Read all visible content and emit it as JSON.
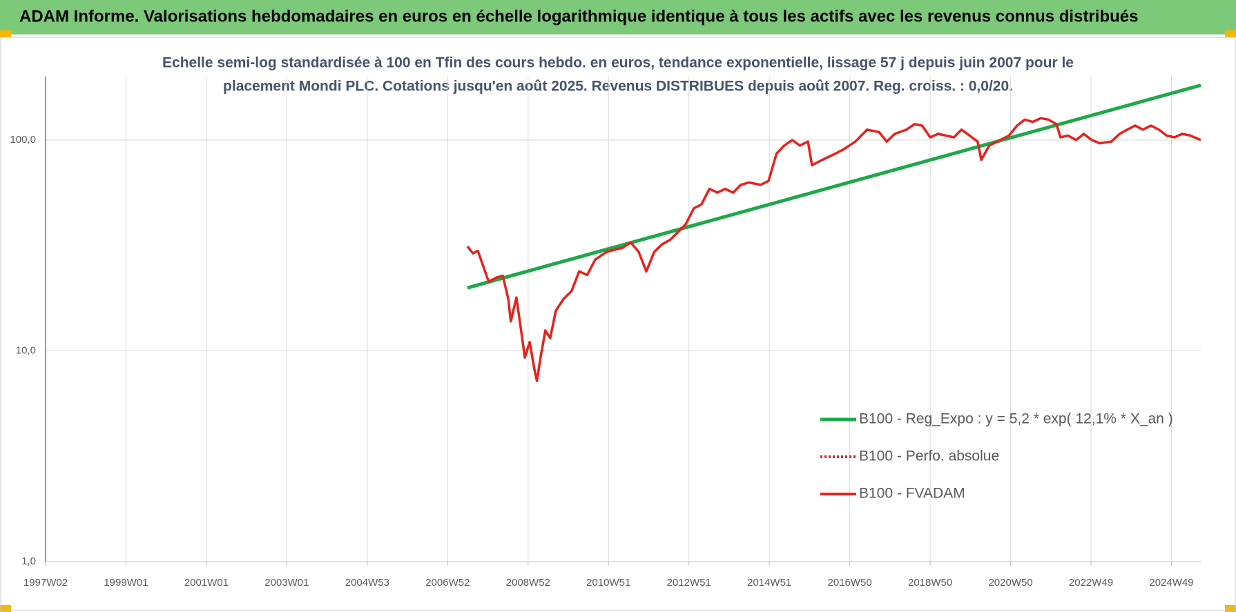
{
  "header": {
    "title": "ADAM Informe. Valorisations hebdomadaires en euros en échelle logarithmique identique à tous les actifs avec les revenus connus distribués"
  },
  "chart_data": {
    "type": "line",
    "title": [
      "Echelle semi-log standardisée à 100 en Tfin des cours hebdo. en euros, tendance exponentielle, lissage 57 j depuis juin 2007 pour le",
      "placement Mondi PLC. Cotations jusqu'en août 2025. Revenus DISTRIBUES depuis août 2007. Reg. croiss. : 0,0/20."
    ],
    "log_y": true,
    "grid": true,
    "legend": "lower right",
    "xlim": [
      1997,
      2025.73
    ],
    "xticks": [
      {
        "value": 1997,
        "label": "1997W02"
      },
      {
        "value": 1999,
        "label": "1999W01"
      },
      {
        "value": 2001,
        "label": "2001W01"
      },
      {
        "value": 2003,
        "label": "2003W01"
      },
      {
        "value": 2005,
        "label": "2004W53"
      },
      {
        "value": 2007,
        "label": "2006W52"
      },
      {
        "value": 2009,
        "label": "2008W52"
      },
      {
        "value": 2011,
        "label": "2010W51"
      },
      {
        "value": 2013,
        "label": "2012W51"
      },
      {
        "value": 2015,
        "label": "2014W51"
      },
      {
        "value": 2017,
        "label": "2016W50"
      },
      {
        "value": 2019,
        "label": "2018W50"
      },
      {
        "value": 2021,
        "label": "2020W50"
      },
      {
        "value": 2023,
        "label": "2022W49"
      },
      {
        "value": 2025,
        "label": "2024W49"
      }
    ],
    "ylim": [
      1,
      200
    ],
    "yticks": [
      {
        "value": 1,
        "label": "1,0"
      },
      {
        "value": 10,
        "label": "10,0"
      },
      {
        "value": 100,
        "label": "100,0"
      }
    ],
    "series": [
      {
        "name": "B100 - Reg_Expo : y = 5,2 * exp( 12,1% *  X_an )",
        "color": "#1ea84a",
        "style": "solid",
        "x": [
          2007.49,
          2025.73
        ],
        "values": [
          19.9,
          182
        ]
      },
      {
        "name": "B100 - Perfo. absolue",
        "color": "#e8211c",
        "style": "dotted",
        "x": [],
        "values": []
      },
      {
        "name": "B100 - FVADAM",
        "color": "#e8211c",
        "style": "solid",
        "x": [
          2007.49,
          2007.63,
          2007.75,
          2007.86,
          2008.02,
          2008.22,
          2008.37,
          2008.51,
          2008.57,
          2008.71,
          2008.8,
          2008.92,
          2009.04,
          2009.16,
          2009.22,
          2009.31,
          2009.43,
          2009.55,
          2009.69,
          2009.88,
          2010.08,
          2010.27,
          2010.47,
          2010.67,
          2010.96,
          2011.35,
          2011.55,
          2011.75,
          2011.94,
          2012.14,
          2012.33,
          2012.53,
          2012.73,
          2012.92,
          2013.12,
          2013.31,
          2013.51,
          2013.71,
          2013.9,
          2014.1,
          2014.29,
          2014.49,
          2014.78,
          2014.98,
          2015.18,
          2015.37,
          2015.57,
          2015.76,
          2015.96,
          2016.06,
          2016.25,
          2016.45,
          2016.65,
          2016.84,
          2017.14,
          2017.43,
          2017.73,
          2017.92,
          2018.12,
          2018.41,
          2018.61,
          2018.8,
          2019.0,
          2019.2,
          2019.39,
          2019.59,
          2019.78,
          2019.98,
          2020.18,
          2020.27,
          2020.47,
          2020.67,
          2020.96,
          2021.16,
          2021.35,
          2021.55,
          2021.75,
          2021.94,
          2022.14,
          2022.24,
          2022.43,
          2022.63,
          2022.82,
          2023.02,
          2023.22,
          2023.51,
          2023.71,
          2023.9,
          2024.1,
          2024.29,
          2024.49,
          2024.69,
          2024.88,
          2025.08,
          2025.27,
          2025.47,
          2025.73
        ],
        "values": [
          31.3,
          29,
          29.8,
          26,
          21.3,
          22.3,
          22.7,
          17.6,
          13.8,
          17.9,
          13.6,
          9.3,
          11,
          8.1,
          7.2,
          9.3,
          12.5,
          11.5,
          15.5,
          17.6,
          19.2,
          23.8,
          22.9,
          27.1,
          29.5,
          30.8,
          32.7,
          29.5,
          23.8,
          29.5,
          32,
          33.6,
          36.6,
          39.9,
          47.4,
          49.5,
          58.7,
          56.3,
          58.7,
          56.3,
          61.3,
          62.9,
          61.3,
          64,
          86.4,
          94.2,
          100,
          94.2,
          98.3,
          76,
          79.3,
          82.8,
          86.4,
          90.2,
          98.3,
          112,
          109,
          98.3,
          107,
          112,
          119,
          117,
          103,
          107,
          105,
          103,
          112,
          105,
          98.3,
          80.6,
          94.2,
          98.3,
          105,
          117,
          125,
          122,
          127,
          125,
          119,
          103,
          105,
          100,
          107,
          100,
          96.6,
          98.3,
          107,
          112,
          117,
          112,
          117,
          112,
          105,
          103,
          107,
          105,
          100
        ]
      }
    ]
  }
}
